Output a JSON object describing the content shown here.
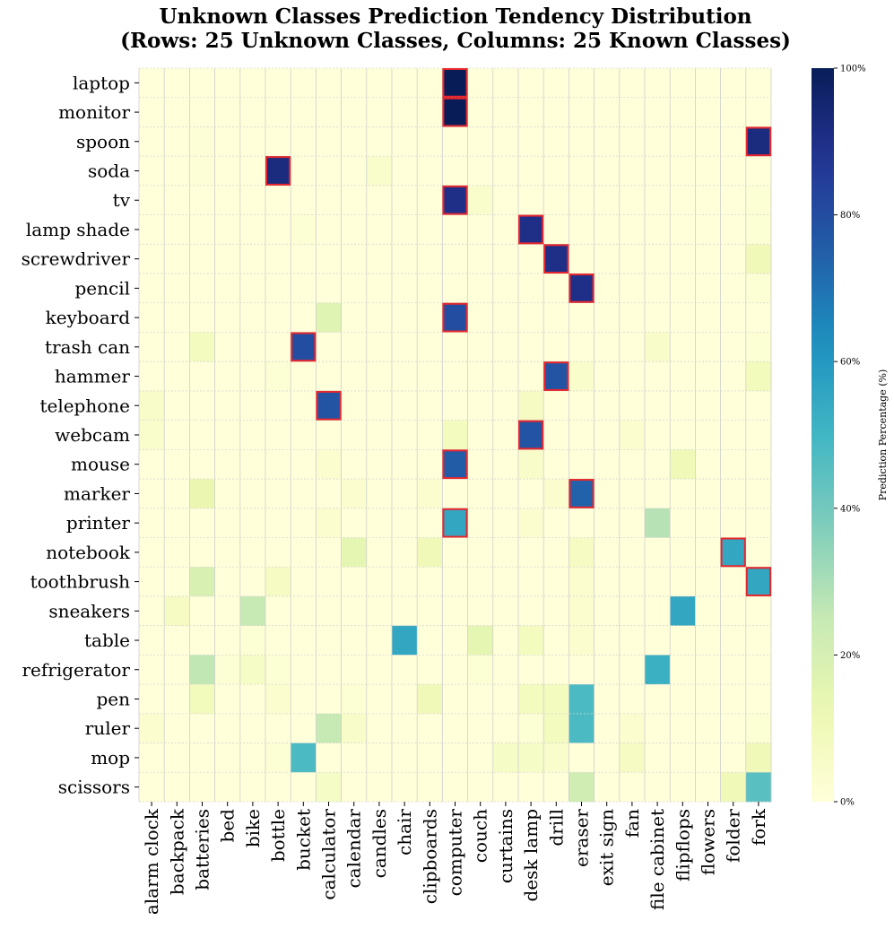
{
  "chart_data": {
    "type": "heatmap",
    "title": "Unknown Classes Prediction Tendency Distribution",
    "subtitle": "(Rows: 25 Unknown Classes, Columns: 25 Known Classes)",
    "rows": [
      "laptop",
      "monitor",
      "spoon",
      "soda",
      "tv",
      "lamp shade",
      "screwdriver",
      "pencil",
      "keyboard",
      "trash can",
      "hammer",
      "telephone",
      "webcam",
      "mouse",
      "marker",
      "printer",
      "notebook",
      "toothbrush",
      "sneakers",
      "table",
      "refrigerator",
      "pen",
      "ruler",
      "mop",
      "scissors"
    ],
    "columns": [
      "alarm clock",
      "backpack",
      "batteries",
      "bed",
      "bike",
      "bottle",
      "bucket",
      "calculator",
      "calendar",
      "candles",
      "chair",
      "clipboards",
      "computer",
      "couch",
      "curtains",
      "desk lamp",
      "drill",
      "eraser",
      "exit sign",
      "fan",
      "file cabinet",
      "flipflops",
      "flowers",
      "folder",
      "fork"
    ],
    "values": [
      [
        0,
        0,
        0,
        0,
        0,
        0,
        0,
        0,
        0,
        0,
        0,
        0,
        100,
        0,
        0,
        0,
        0,
        0,
        0,
        0,
        0,
        0,
        0,
        0,
        0
      ],
      [
        0,
        0,
        0,
        0,
        0,
        0,
        0,
        0,
        0,
        0,
        0,
        0,
        100,
        0,
        0,
        0,
        0,
        0,
        0,
        0,
        0,
        0,
        0,
        0,
        0
      ],
      [
        0,
        0,
        1,
        0,
        0,
        0,
        0,
        0,
        0,
        0,
        0,
        0,
        0,
        0,
        0,
        0,
        0,
        0,
        0,
        0,
        0,
        0,
        0,
        0,
        92
      ],
      [
        0,
        0,
        1,
        0,
        0,
        92,
        0,
        0,
        0,
        4,
        0,
        0,
        0,
        0,
        0,
        0,
        0,
        0,
        0,
        0,
        0,
        0,
        0,
        0,
        0
      ],
      [
        0,
        0,
        0,
        0,
        0,
        0,
        0,
        0,
        0,
        0,
        0,
        0,
        90,
        4,
        0,
        0,
        0,
        0,
        0,
        0,
        0,
        0,
        0,
        0,
        2
      ],
      [
        0,
        0,
        0,
        0,
        0,
        0,
        2,
        0,
        0,
        0,
        0,
        0,
        0,
        0,
        0,
        90,
        0,
        0,
        0,
        0,
        0,
        0,
        0,
        0,
        2
      ],
      [
        0,
        0,
        0,
        0,
        0,
        0,
        0,
        0,
        0,
        0,
        0,
        0,
        0,
        0,
        0,
        0,
        90,
        0,
        0,
        0,
        0,
        0,
        0,
        0,
        10
      ],
      [
        0,
        0,
        0,
        0,
        0,
        0,
        0,
        0,
        0,
        0,
        0,
        0,
        0,
        0,
        0,
        0,
        0,
        90,
        0,
        0,
        0,
        0,
        0,
        0,
        2
      ],
      [
        0,
        0,
        0,
        0,
        0,
        0,
        0,
        17,
        0,
        0,
        0,
        0,
        80,
        0,
        0,
        0,
        0,
        0,
        0,
        0,
        0,
        0,
        0,
        0,
        0
      ],
      [
        0,
        0,
        8,
        0,
        0,
        0,
        80,
        0,
        0,
        0,
        0,
        0,
        0,
        0,
        0,
        0,
        0,
        0,
        0,
        0,
        5,
        0,
        0,
        0,
        2
      ],
      [
        0,
        0,
        0,
        0,
        0,
        2,
        0,
        0,
        0,
        0,
        0,
        0,
        0,
        0,
        0,
        0,
        78,
        4,
        0,
        0,
        0,
        0,
        0,
        0,
        9
      ],
      [
        5,
        0,
        0,
        0,
        0,
        0,
        0,
        78,
        0,
        0,
        0,
        0,
        0,
        0,
        0,
        7,
        0,
        0,
        0,
        0,
        0,
        0,
        0,
        0,
        0
      ],
      [
        4,
        0,
        0,
        0,
        0,
        0,
        0,
        0,
        0,
        0,
        0,
        0,
        8,
        0,
        0,
        78,
        0,
        0,
        0,
        3,
        0,
        0,
        0,
        0,
        0
      ],
      [
        0,
        0,
        0,
        0,
        0,
        0,
        0,
        3,
        0,
        0,
        0,
        0,
        76,
        0,
        0,
        5,
        0,
        0,
        0,
        0,
        0,
        10,
        0,
        0,
        0
      ],
      [
        0,
        0,
        13,
        0,
        0,
        0,
        0,
        0,
        3,
        0,
        0,
        3,
        0,
        0,
        0,
        0,
        3,
        74,
        0,
        0,
        0,
        0,
        0,
        0,
        0
      ],
      [
        0,
        0,
        0,
        0,
        0,
        0,
        0,
        3,
        0,
        0,
        0,
        0,
        55,
        0,
        0,
        3,
        0,
        0,
        0,
        0,
        28,
        0,
        0,
        0,
        0
      ],
      [
        0,
        0,
        0,
        0,
        0,
        0,
        0,
        0,
        15,
        0,
        0,
        10,
        0,
        0,
        0,
        0,
        0,
        7,
        0,
        0,
        0,
        0,
        0,
        55,
        0
      ],
      [
        0,
        0,
        19,
        0,
        0,
        7,
        0,
        0,
        0,
        0,
        0,
        0,
        0,
        0,
        0,
        0,
        0,
        3,
        0,
        0,
        0,
        0,
        0,
        0,
        55
      ],
      [
        0,
        7,
        0,
        0,
        25,
        0,
        0,
        0,
        0,
        0,
        0,
        0,
        0,
        0,
        0,
        0,
        0,
        3,
        0,
        0,
        0,
        55,
        0,
        0,
        0
      ],
      [
        0,
        0,
        0,
        0,
        2,
        0,
        0,
        0,
        0,
        0,
        55,
        0,
        0,
        15,
        0,
        8,
        0,
        3,
        0,
        0,
        0,
        0,
        0,
        0,
        0
      ],
      [
        0,
        0,
        26,
        2,
        6,
        2,
        0,
        0,
        0,
        0,
        0,
        0,
        0,
        2,
        0,
        0,
        0,
        0,
        0,
        0,
        52,
        0,
        0,
        0,
        0
      ],
      [
        0,
        0,
        9,
        0,
        0,
        3,
        0,
        0,
        2,
        0,
        0,
        10,
        0,
        0,
        0,
        8,
        8,
        48,
        0,
        0,
        0,
        0,
        0,
        0,
        0
      ],
      [
        3,
        0,
        0,
        0,
        0,
        0,
        0,
        25,
        5,
        0,
        0,
        0,
        0,
        0,
        0,
        2,
        8,
        48,
        0,
        3,
        0,
        0,
        0,
        0,
        2
      ],
      [
        0,
        0,
        0,
        0,
        0,
        2,
        48,
        0,
        0,
        0,
        0,
        0,
        0,
        0,
        6,
        6,
        4,
        0,
        0,
        7,
        0,
        0,
        0,
        0,
        10
      ],
      [
        0,
        0,
        0,
        0,
        0,
        0,
        0,
        6,
        0,
        0,
        0,
        0,
        0,
        0,
        0,
        0,
        0,
        22,
        0,
        0,
        0,
        0,
        0,
        10,
        45
      ]
    ],
    "highlighted": [
      [
        0,
        12
      ],
      [
        1,
        12
      ],
      [
        2,
        24
      ],
      [
        3,
        5
      ],
      [
        4,
        12
      ],
      [
        5,
        15
      ],
      [
        6,
        16
      ],
      [
        7,
        17
      ],
      [
        8,
        12
      ],
      [
        9,
        6
      ],
      [
        10,
        16
      ],
      [
        11,
        7
      ],
      [
        12,
        15
      ],
      [
        13,
        12
      ],
      [
        14,
        17
      ],
      [
        15,
        12
      ],
      [
        16,
        23
      ],
      [
        17,
        24
      ]
    ],
    "colorbar": {
      "label": "Prediction Percentage (%)",
      "range": [
        0,
        100
      ],
      "ticks": [
        "0%",
        "20%",
        "40%",
        "60%",
        "80%",
        "100%"
      ],
      "tick_values": [
        0,
        20,
        40,
        60,
        80,
        100
      ],
      "colormap": "YlGnBu"
    },
    "highlight_color": "#e8262c"
  }
}
